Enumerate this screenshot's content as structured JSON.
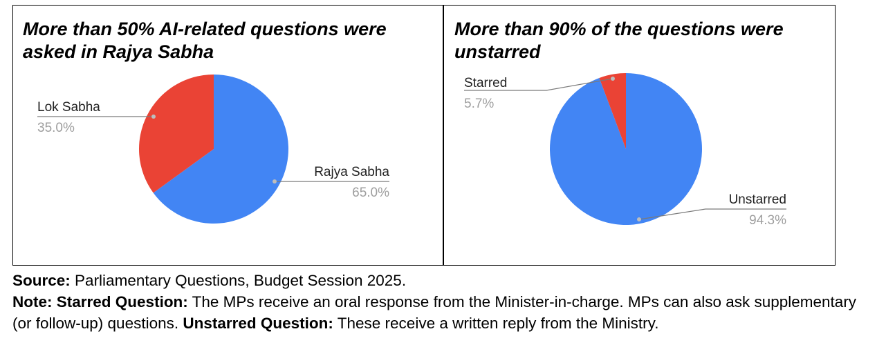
{
  "chart_data": [
    {
      "type": "pie",
      "title": "More than 50% AI-related questions were asked in Rajya Sabha",
      "series": [
        {
          "name": "Rajya Sabha",
          "value": 65.0,
          "value_label": "65.0%",
          "color": "#4285F4"
        },
        {
          "name": "Lok Sabha",
          "value": 35.0,
          "value_label": "35.0%",
          "color": "#EA4335"
        }
      ]
    },
    {
      "type": "pie",
      "title": "More than 90% of the questions were unstarred",
      "series": [
        {
          "name": "Unstarred",
          "value": 94.3,
          "value_label": "94.3%",
          "color": "#4285F4"
        },
        {
          "name": "Starred",
          "value": 5.7,
          "value_label": "5.7%",
          "color": "#EA4335"
        }
      ]
    }
  ],
  "footer": {
    "source_label": "Source:",
    "source_text": "Parliamentary Questions, Budget Session 2025.",
    "note_label": "Note:",
    "starred_label": "Starred Question:",
    "starred_text": "The MPs receive an oral response from the Minister-in-charge. MPs can also ask supplementary (or follow-up) questions.",
    "unstarred_label": "Unstarred Question:",
    "unstarred_text": "These receive a written reply from the Ministry."
  }
}
